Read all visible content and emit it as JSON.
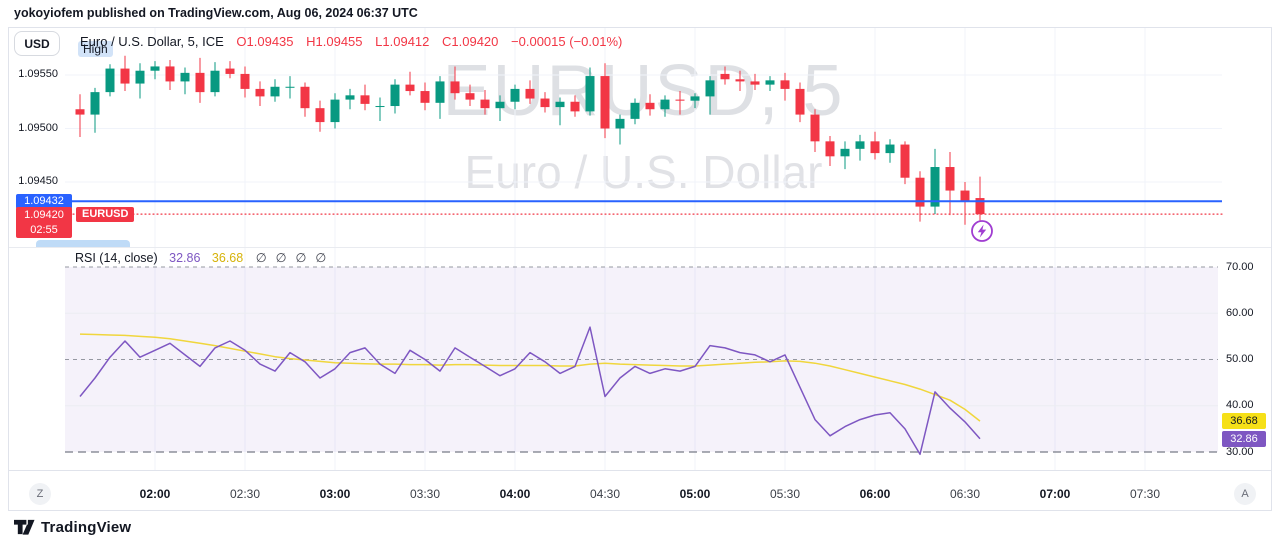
{
  "header": {
    "published_line": "yokoyiofem published on TradingView.com, Aug 06, 2024 06:37 UTC"
  },
  "toolbar": {
    "currency_button": "USD"
  },
  "legend": {
    "symbol_title": "Euro / U.S. Dollar, 5, ICE",
    "open": "O1.09435",
    "high": "H1.09455",
    "low": "L1.09412",
    "close": "C1.09420",
    "change": "−0.00015 (−0.01%)"
  },
  "high_tooltip": "High",
  "watermark": {
    "line1": "EURUSD, 5",
    "line2": "Euro / U.S. Dollar"
  },
  "price_scale": {
    "labels": [
      {
        "text": "1.09550",
        "price": 1.0955
      },
      {
        "text": "1.09500",
        "price": 1.095
      },
      {
        "text": "1.09450",
        "price": 1.0945
      }
    ],
    "last_price_badge": {
      "text": "1.09432",
      "price": 1.09432,
      "color": "#2962FF"
    },
    "countdown_badge": {
      "text": "1.09420",
      "time": "02:55",
      "price": 1.0942,
      "color": "#F23645"
    }
  },
  "symbol_tag": "EURUSD",
  "rsi_pane": {
    "title": "RSI (14, close)",
    "value_text": "32.86",
    "ma_text": "36.68",
    "empty_symbols": [
      "∅",
      "∅",
      "∅",
      "∅"
    ],
    "badges": {
      "ma": "36.68",
      "value": "32.86"
    }
  },
  "time_axis": {
    "left_button": "Z",
    "right_button": "A",
    "labels": [
      {
        "text": "02:00",
        "major": true
      },
      {
        "text": "02:30",
        "major": false
      },
      {
        "text": "03:00",
        "major": true
      },
      {
        "text": "03:30",
        "major": false
      },
      {
        "text": "04:00",
        "major": true
      },
      {
        "text": "04:30",
        "major": false
      },
      {
        "text": "05:00",
        "major": true
      },
      {
        "text": "05:30",
        "major": false
      },
      {
        "text": "06:00",
        "major": true
      },
      {
        "text": "06:30",
        "major": false
      },
      {
        "text": "07:00",
        "major": true
      },
      {
        "text": "07:30",
        "major": false
      }
    ]
  },
  "footer": {
    "brand": "TradingView"
  },
  "chart_data": [
    {
      "type": "candlestick",
      "title": "Euro / U.S. Dollar, 5, ICE",
      "interval": "5",
      "up_color": "#089981",
      "down_color": "#F23645",
      "ylim": [
        1.094,
        1.09575
      ],
      "y_ticks": [
        1.0955,
        1.095,
        1.0945
      ],
      "price_lines": [
        {
          "value": 1.09432,
          "color": "#2962FF",
          "style": "solid"
        },
        {
          "value": 1.0942,
          "color": "#F23645",
          "style": "dotted"
        }
      ],
      "times": [
        "01:35",
        "01:40",
        "01:45",
        "01:50",
        "01:55",
        "02:00",
        "02:05",
        "02:10",
        "02:15",
        "02:20",
        "02:25",
        "02:30",
        "02:35",
        "02:40",
        "02:45",
        "02:50",
        "02:55",
        "03:00",
        "03:05",
        "03:10",
        "03:15",
        "03:20",
        "03:25",
        "03:30",
        "03:35",
        "03:40",
        "03:45",
        "03:50",
        "03:55",
        "04:00",
        "04:05",
        "04:10",
        "04:15",
        "04:20",
        "04:25",
        "04:30",
        "04:35",
        "04:40",
        "04:45",
        "04:50",
        "04:55",
        "05:00",
        "05:05",
        "05:10",
        "05:15",
        "05:20",
        "05:25",
        "05:30",
        "05:35",
        "05:40",
        "05:45",
        "05:50",
        "05:55",
        "06:00",
        "06:05",
        "06:10",
        "06:15",
        "06:20",
        "06:25",
        "06:30",
        "06:35"
      ],
      "ohlc": [
        [
          1.09518,
          1.09532,
          1.09492,
          1.09513
        ],
        [
          1.09513,
          1.09538,
          1.09496,
          1.09534
        ],
        [
          1.09534,
          1.0956,
          1.0953,
          1.09556
        ],
        [
          1.09556,
          1.09568,
          1.09535,
          1.09542
        ],
        [
          1.09542,
          1.09561,
          1.09528,
          1.09554
        ],
        [
          1.09554,
          1.09563,
          1.09546,
          1.09558
        ],
        [
          1.09558,
          1.09564,
          1.09536,
          1.09544
        ],
        [
          1.09544,
          1.09557,
          1.09532,
          1.09552
        ],
        [
          1.09552,
          1.09566,
          1.09524,
          1.09534
        ],
        [
          1.09534,
          1.09562,
          1.0953,
          1.09554
        ],
        [
          1.09556,
          1.09563,
          1.09547,
          1.09551
        ],
        [
          1.09551,
          1.09558,
          1.09529,
          1.09537
        ],
        [
          1.09537,
          1.09544,
          1.09521,
          1.0953
        ],
        [
          1.0953,
          1.09546,
          1.09525,
          1.09539
        ],
        [
          1.09539,
          1.09549,
          1.09528,
          1.09539
        ],
        [
          1.09539,
          1.09543,
          1.09511,
          1.09519
        ],
        [
          1.09519,
          1.09526,
          1.09497,
          1.09506
        ],
        [
          1.09506,
          1.09533,
          1.095,
          1.09527
        ],
        [
          1.09527,
          1.09537,
          1.09518,
          1.09531
        ],
        [
          1.09531,
          1.09541,
          1.09517,
          1.09523
        ],
        [
          1.09521,
          1.09529,
          1.09507,
          1.09521
        ],
        [
          1.09521,
          1.09546,
          1.09514,
          1.09541
        ],
        [
          1.09541,
          1.09553,
          1.09531,
          1.09535
        ],
        [
          1.09535,
          1.09543,
          1.09517,
          1.09524
        ],
        [
          1.09524,
          1.09549,
          1.09509,
          1.09544
        ],
        [
          1.09544,
          1.09558,
          1.09527,
          1.09533
        ],
        [
          1.09533,
          1.09541,
          1.09521,
          1.09527
        ],
        [
          1.09527,
          1.09536,
          1.09513,
          1.09519
        ],
        [
          1.09519,
          1.09531,
          1.09507,
          1.09525
        ],
        [
          1.09525,
          1.09541,
          1.09518,
          1.09537
        ],
        [
          1.09537,
          1.09545,
          1.09523,
          1.09528
        ],
        [
          1.09528,
          1.09534,
          1.09515,
          1.0952
        ],
        [
          1.0952,
          1.09529,
          1.09503,
          1.09525
        ],
        [
          1.09525,
          1.09531,
          1.09511,
          1.09516
        ],
        [
          1.09516,
          1.09557,
          1.09512,
          1.09549
        ],
        [
          1.09549,
          1.09561,
          1.09491,
          1.095
        ],
        [
          1.095,
          1.09513,
          1.09485,
          1.09509
        ],
        [
          1.09509,
          1.09528,
          1.09504,
          1.09524
        ],
        [
          1.09524,
          1.09532,
          1.09512,
          1.09518
        ],
        [
          1.09518,
          1.09531,
          1.09511,
          1.09527
        ],
        [
          1.09527,
          1.09535,
          1.09513,
          1.09526
        ],
        [
          1.09526,
          1.09533,
          1.09519,
          1.0953
        ],
        [
          1.0953,
          1.09549,
          1.09513,
          1.09545
        ],
        [
          1.09551,
          1.09558,
          1.09541,
          1.09546
        ],
        [
          1.09546,
          1.09554,
          1.09535,
          1.09544
        ],
        [
          1.09544,
          1.09551,
          1.09536,
          1.09541
        ],
        [
          1.09541,
          1.09549,
          1.09535,
          1.09545
        ],
        [
          1.09545,
          1.09552,
          1.09526,
          1.09537
        ],
        [
          1.09537,
          1.09543,
          1.09506,
          1.09513
        ],
        [
          1.09513,
          1.09518,
          1.09478,
          1.09488
        ],
        [
          1.09488,
          1.09493,
          1.09465,
          1.09474
        ],
        [
          1.09474,
          1.09488,
          1.09462,
          1.09481
        ],
        [
          1.09481,
          1.09494,
          1.0947,
          1.09488
        ],
        [
          1.09488,
          1.09497,
          1.09471,
          1.09477
        ],
        [
          1.09477,
          1.0949,
          1.09468,
          1.09485
        ],
        [
          1.09485,
          1.09488,
          1.09448,
          1.09454
        ],
        [
          1.09454,
          1.0946,
          1.09413,
          1.09427
        ],
        [
          1.09427,
          1.09481,
          1.0942,
          1.09464
        ],
        [
          1.09464,
          1.09478,
          1.09419,
          1.09442
        ],
        [
          1.09442,
          1.0945,
          1.0941,
          1.09432
        ],
        [
          1.09435,
          1.09455,
          1.09412,
          1.0942
        ]
      ]
    },
    {
      "type": "line",
      "title": "RSI (14, close)",
      "band": [
        30,
        70
      ],
      "band_fill": "rgba(126,87,194,0.08)",
      "ylim": [
        26,
        74
      ],
      "levels": [
        {
          "value": 70,
          "label": "70.00",
          "style": "dashed"
        },
        {
          "value": 60,
          "label": "60.00",
          "style": "solid"
        },
        {
          "value": 50,
          "label": "50.00",
          "style": "dashed"
        },
        {
          "value": 40,
          "label": "40.00",
          "style": "solid"
        },
        {
          "value": 30,
          "label": "30.00",
          "style": "dashed-bold"
        }
      ],
      "series": [
        {
          "name": "RSI",
          "color": "#7E57C2",
          "values": [
            42,
            46,
            50.5,
            54,
            50.5,
            52,
            53.5,
            51,
            48.5,
            52.5,
            54,
            52,
            49,
            47.5,
            51.5,
            49.5,
            46,
            48,
            51.5,
            52.5,
            49,
            47,
            52,
            50,
            47.5,
            52.5,
            50.5,
            48.5,
            46.5,
            48,
            51.5,
            49.5,
            47,
            48.5,
            57,
            42,
            46,
            48.5,
            47,
            48,
            47.5,
            48.5,
            53,
            52.5,
            51.5,
            51,
            49.5,
            51,
            44,
            37,
            33.5,
            35.5,
            37,
            38,
            38.5,
            35,
            29.5,
            43,
            39.5,
            36.5,
            32.86
          ]
        },
        {
          "name": "RSI-based MA",
          "color": "#F0D63C",
          "values": [
            55.5,
            55.4,
            55.3,
            55.2,
            55.0,
            54.8,
            54.5,
            54.0,
            53.5,
            53.0,
            52.4,
            51.8,
            51.2,
            50.6,
            50.2,
            49.9,
            49.6,
            49.3,
            49.2,
            49.1,
            49.0,
            49.0,
            48.9,
            48.9,
            48.8,
            48.9,
            48.9,
            48.8,
            48.7,
            48.7,
            48.7,
            48.7,
            48.6,
            48.6,
            49.0,
            49.2,
            49.0,
            48.9,
            48.8,
            48.7,
            48.6,
            48.6,
            48.8,
            49.0,
            49.2,
            49.4,
            49.5,
            49.7,
            49.6,
            49.2,
            48.6,
            47.8,
            47.0,
            46.2,
            45.4,
            44.6,
            43.6,
            42.4,
            41.2,
            39.2,
            36.68
          ]
        }
      ]
    }
  ]
}
